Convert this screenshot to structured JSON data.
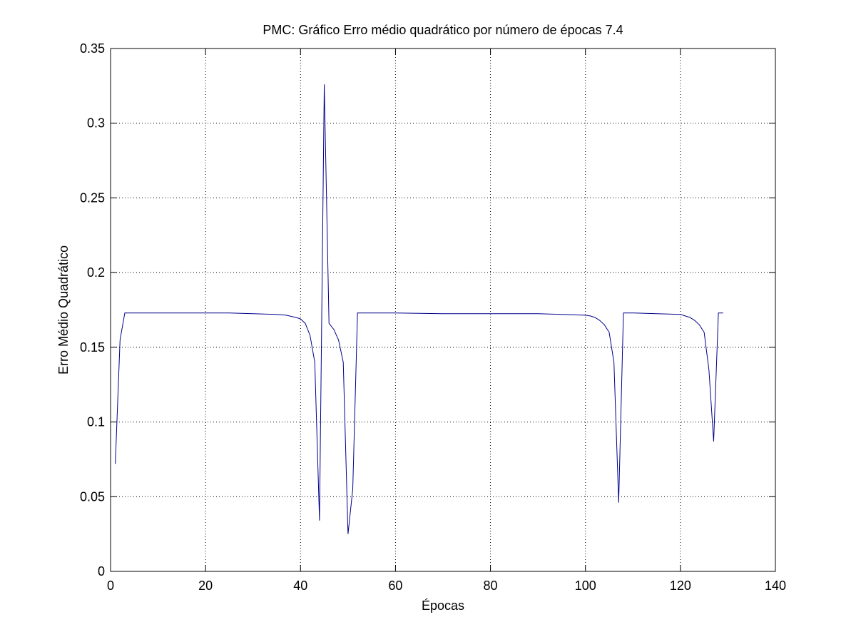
{
  "chart_data": {
    "type": "line",
    "title": "PMC: Gráfico Erro médio quadrático por número de épocas 7.4",
    "xlabel": "Épocas",
    "ylabel": "Erro Médio Quadrático",
    "xlim": [
      0,
      140
    ],
    "ylim": [
      0,
      0.35
    ],
    "x_ticks": [
      0,
      20,
      40,
      60,
      80,
      100,
      120,
      140
    ],
    "y_ticks": [
      0,
      0.05,
      0.1,
      0.15,
      0.2,
      0.25,
      0.3,
      0.35
    ],
    "x_tick_labels": [
      "0",
      "20",
      "40",
      "60",
      "80",
      "100",
      "120",
      "140"
    ],
    "y_tick_labels": [
      "0",
      "0.05",
      "0.1",
      "0.15",
      "0.2",
      "0.25",
      "0.3",
      "0.35"
    ],
    "grid": true,
    "legend": "none",
    "series": [
      {
        "color": "#00008b",
        "x": [
          1,
          2,
          3,
          5,
          10,
          15,
          20,
          25,
          30,
          35,
          37,
          39,
          40,
          41,
          42,
          43,
          44,
          45,
          46,
          47,
          48,
          49,
          50,
          51,
          52,
          55,
          60,
          70,
          80,
          90,
          95,
          100,
          101,
          102,
          103,
          104,
          105,
          106,
          107,
          108,
          109,
          110,
          115,
          120,
          121,
          122,
          123,
          124,
          125,
          126,
          127,
          128,
          129
        ],
        "y": [
          0.072,
          0.155,
          0.173,
          0.173,
          0.173,
          0.173,
          0.173,
          0.173,
          0.1725,
          0.172,
          0.1715,
          0.17,
          0.169,
          0.166,
          0.158,
          0.14,
          0.034,
          0.326,
          0.166,
          0.162,
          0.155,
          0.14,
          0.025,
          0.055,
          0.173,
          0.173,
          0.173,
          0.1725,
          0.1725,
          0.1725,
          0.172,
          0.1715,
          0.171,
          0.17,
          0.168,
          0.165,
          0.16,
          0.14,
          0.046,
          0.173,
          0.173,
          0.173,
          0.1725,
          0.172,
          0.171,
          0.17,
          0.168,
          0.165,
          0.16,
          0.135,
          0.087,
          0.173,
          0.173
        ]
      }
    ]
  }
}
